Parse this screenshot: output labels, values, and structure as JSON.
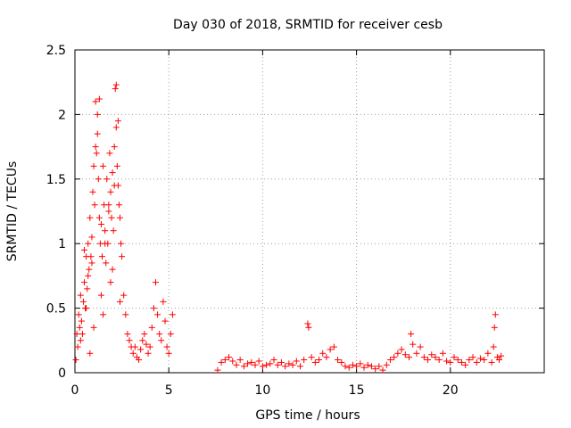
{
  "chart_data": {
    "type": "scatter",
    "title": "Day 030 of 2018, SRMTID for receiver cesb",
    "xlabel": "GPS time / hours",
    "ylabel": "SRMTID / TECUs",
    "xlim": [
      0,
      25
    ],
    "ylim": [
      0,
      2.5
    ],
    "xticks": [
      0,
      5,
      10,
      15,
      20
    ],
    "yticks": [
      0,
      0.5,
      1,
      1.5,
      2,
      2.5
    ],
    "xtick_labels": [
      "0",
      "5",
      "10",
      "15",
      "20"
    ],
    "ytick_labels": [
      "0",
      "0.5",
      "1",
      "1.5",
      "2",
      "2.5"
    ],
    "grid": true,
    "marker": "plus",
    "color": "#ff0000",
    "series": [
      {
        "name": "SRMTID",
        "x": [
          0.05,
          0.1,
          0.15,
          0.2,
          0.25,
          0.3,
          0.35,
          0.4,
          0.45,
          0.5,
          0.55,
          0.6,
          0.65,
          0.7,
          0.75,
          0.8,
          0.85,
          0.9,
          0.95,
          1.0,
          1.05,
          1.1,
          1.15,
          1.2,
          1.25,
          1.3,
          1.35,
          1.4,
          1.45,
          1.5,
          1.55,
          1.6,
          1.65,
          1.7,
          1.75,
          1.8,
          1.85,
          1.9,
          1.95,
          2.0,
          2.05,
          2.1,
          2.15,
          2.2,
          2.25,
          2.3,
          2.35,
          2.4,
          2.45,
          2.5,
          2.6,
          2.7,
          2.8,
          2.9,
          3.0,
          3.1,
          3.2,
          3.3,
          3.4,
          3.5,
          3.6,
          3.7,
          3.8,
          3.9,
          4.0,
          4.1,
          4.2,
          4.3,
          4.4,
          4.5,
          4.6,
          4.7,
          4.8,
          4.9,
          5.0,
          5.1,
          5.2,
          0.3,
          0.6,
          0.9,
          1.1,
          1.2,
          1.3,
          1.6,
          1.8,
          2.1,
          2.2,
          2.3,
          0.5,
          0.7,
          1.4,
          1.5,
          1.9,
          2.4,
          2.0,
          1.0,
          0.8,
          7.6,
          7.8,
          8.0,
          8.2,
          8.4,
          8.6,
          8.8,
          9.0,
          9.2,
          9.4,
          9.6,
          9.8,
          10.0,
          10.2,
          10.4,
          10.6,
          10.8,
          11.0,
          11.2,
          11.4,
          11.6,
          11.8,
          12.0,
          12.2,
          12.4,
          12.45,
          12.6,
          12.8,
          13.0,
          13.2,
          13.4,
          13.6,
          13.8,
          14.0,
          14.2,
          14.4,
          14.6,
          14.8,
          15.0,
          15.2,
          15.4,
          15.6,
          15.8,
          16.0,
          16.2,
          16.4,
          16.6,
          16.8,
          17.0,
          17.2,
          17.4,
          17.6,
          17.8,
          17.9,
          18.0,
          18.2,
          18.4,
          18.6,
          18.8,
          19.0,
          19.2,
          19.4,
          19.6,
          19.8,
          20.0,
          20.2,
          20.4,
          20.6,
          20.8,
          21.0,
          21.2,
          21.4,
          21.6,
          21.8,
          22.0,
          22.2,
          22.3,
          22.35,
          22.4,
          22.5,
          22.6,
          22.7
        ],
        "y": [
          0.1,
          0.3,
          0.2,
          0.45,
          0.35,
          0.6,
          0.4,
          0.3,
          0.55,
          0.7,
          0.5,
          0.9,
          0.65,
          1.0,
          0.8,
          1.2,
          0.9,
          1.05,
          1.4,
          1.6,
          1.3,
          2.1,
          1.7,
          1.85,
          1.5,
          1.2,
          1.0,
          1.15,
          0.9,
          1.6,
          1.3,
          1.1,
          0.85,
          1.5,
          1.0,
          1.3,
          1.7,
          1.4,
          1.2,
          1.55,
          1.1,
          1.75,
          2.2,
          1.9,
          1.6,
          1.45,
          1.3,
          1.2,
          1.0,
          0.9,
          0.6,
          0.45,
          0.3,
          0.25,
          0.2,
          0.15,
          0.2,
          0.12,
          0.1,
          0.18,
          0.25,
          0.3,
          0.22,
          0.15,
          0.2,
          0.35,
          0.5,
          0.7,
          0.45,
          0.3,
          0.25,
          0.55,
          0.4,
          0.2,
          0.15,
          0.3,
          0.45,
          0.25,
          0.5,
          0.85,
          1.75,
          2.0,
          2.12,
          1.0,
          1.25,
          1.45,
          2.23,
          1.95,
          0.95,
          0.75,
          0.6,
          0.45,
          0.7,
          0.55,
          0.8,
          0.35,
          0.15,
          0.02,
          0.08,
          0.1,
          0.12,
          0.09,
          0.06,
          0.1,
          0.05,
          0.07,
          0.08,
          0.06,
          0.09,
          0.05,
          0.06,
          0.07,
          0.1,
          0.06,
          0.08,
          0.05,
          0.07,
          0.06,
          0.09,
          0.05,
          0.1,
          0.38,
          0.35,
          0.12,
          0.08,
          0.1,
          0.15,
          0.12,
          0.18,
          0.2,
          0.1,
          0.08,
          0.05,
          0.04,
          0.06,
          0.05,
          0.07,
          0.04,
          0.06,
          0.05,
          0.03,
          0.05,
          0.02,
          0.06,
          0.1,
          0.12,
          0.15,
          0.18,
          0.14,
          0.12,
          0.3,
          0.22,
          0.15,
          0.2,
          0.12,
          0.1,
          0.14,
          0.12,
          0.1,
          0.15,
          0.09,
          0.08,
          0.12,
          0.1,
          0.08,
          0.06,
          0.1,
          0.12,
          0.08,
          0.11,
          0.1,
          0.15,
          0.08,
          0.2,
          0.35,
          0.45,
          0.12,
          0.1,
          0.13
        ]
      }
    ]
  }
}
